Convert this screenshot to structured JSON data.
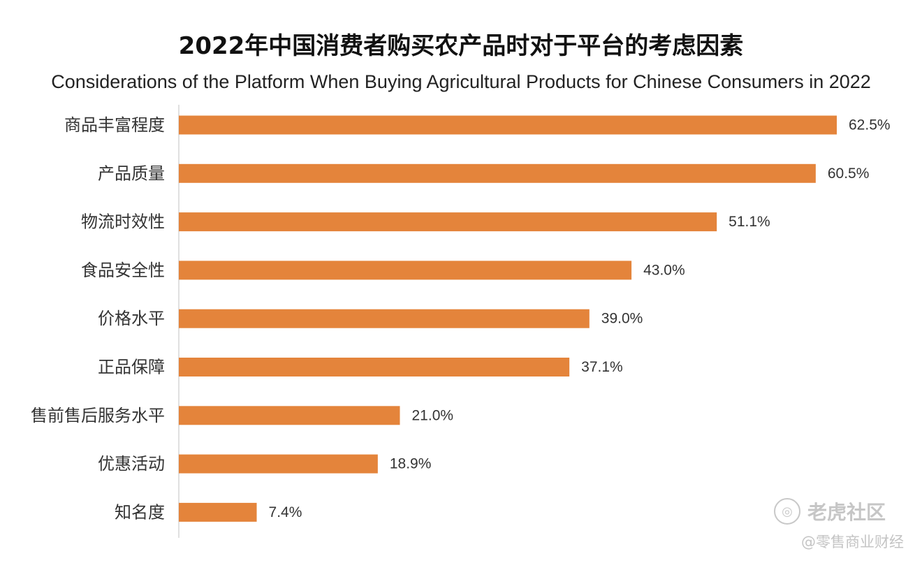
{
  "title": "2022年中国消费者购买农产品时对于平台的考虑因素",
  "subtitle": "Considerations of the Platform When Buying Agricultural Products for Chinese Consumers in 2022",
  "watermark": {
    "brand": "老虎社区",
    "icon": "tiger-logo-icon",
    "source": "@零售商业财经"
  },
  "colors": {
    "bar": "#E4843B",
    "axis": "#d6d6d6"
  },
  "chart_data": {
    "type": "bar",
    "orientation": "horizontal",
    "title": "2022年中国消费者购买农产品时对于平台的考虑因素",
    "subtitle": "Considerations of the Platform When Buying Agricultural Products for Chinese Consumers in 2022",
    "categories": [
      "商品丰富程度",
      "产品质量",
      "物流时效性",
      "食品安全性",
      "价格水平",
      "正品保障",
      "售前售后服务水平",
      "优惠活动",
      "知名度"
    ],
    "values": [
      62.5,
      60.5,
      51.1,
      43.0,
      39.0,
      37.1,
      21.0,
      18.9,
      7.4
    ],
    "value_labels": [
      "62.5%",
      "60.5%",
      "51.1%",
      "43.0%",
      "39.0%",
      "37.1%",
      "21.0%",
      "18.9%",
      "7.4%"
    ],
    "unit": "%",
    "xlim": [
      0,
      62.5
    ],
    "grid": false,
    "legend": "none"
  }
}
